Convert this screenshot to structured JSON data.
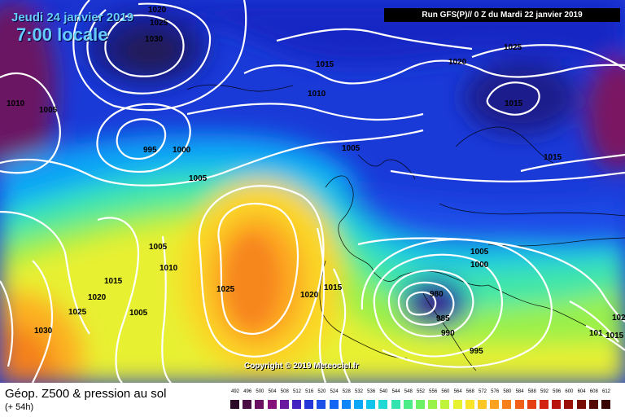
{
  "header": {
    "date": "Jeudi 24 janvier 2019",
    "time": "7:00 locale",
    "run": "Run GFS(P)// 0 Z du Mardi 22 janvier 2019"
  },
  "footer": {
    "product": "Géop. Z500 & pression au sol",
    "offset": "(+ 54h)",
    "copyright": "Copyright © 2019 Meteociel.fr"
  },
  "isobars": [
    {
      "label": "1020"
    },
    {
      "label": "1025"
    },
    {
      "label": "1030"
    },
    {
      "label": "1010"
    },
    {
      "label": "1005"
    },
    {
      "label": "995"
    },
    {
      "label": "1000"
    },
    {
      "label": "1005"
    },
    {
      "label": "1015"
    },
    {
      "label": "1010"
    },
    {
      "label": "1005"
    },
    {
      "label": "1020"
    },
    {
      "label": "1025"
    },
    {
      "label": "1015"
    },
    {
      "label": "1005"
    },
    {
      "label": "1010"
    },
    {
      "label": "1015"
    },
    {
      "label": "1020"
    },
    {
      "label": "1025"
    },
    {
      "label": "1030"
    },
    {
      "label": "1005"
    },
    {
      "label": "1025"
    },
    {
      "label": "1020"
    },
    {
      "label": "1015"
    },
    {
      "label": "1005"
    },
    {
      "label": "1000"
    },
    {
      "label": "980"
    },
    {
      "label": "985"
    },
    {
      "label": "990"
    },
    {
      "label": "995"
    },
    {
      "label": "101"
    },
    {
      "label": "1015"
    },
    {
      "label": "102"
    }
  ],
  "scale": {
    "values": [
      "492",
      "496",
      "500",
      "504",
      "508",
      "512",
      "516",
      "520",
      "524",
      "528",
      "532",
      "536",
      "540",
      "544",
      "548",
      "552",
      "556",
      "560",
      "564",
      "568",
      "572",
      "576",
      "580",
      "584",
      "588",
      "592",
      "596",
      "600",
      "604",
      "608",
      "612"
    ],
    "colors": [
      "#2a0a26",
      "#4a0e44",
      "#6a1062",
      "#84127a",
      "#6b18a0",
      "#4424c0",
      "#2436d8",
      "#1c4ee8",
      "#1466f4",
      "#0c86fa",
      "#0ca6f6",
      "#10c4ec",
      "#20d8d4",
      "#34e4b0",
      "#4cec88",
      "#6cf064",
      "#98f248",
      "#c0f43a",
      "#e6f22e",
      "#fae428",
      "#fcc624",
      "#fca220",
      "#f8801c",
      "#f06018",
      "#e44014",
      "#d42210",
      "#b8120c",
      "#981008",
      "#780c06",
      "#560804",
      "#380402"
    ]
  }
}
